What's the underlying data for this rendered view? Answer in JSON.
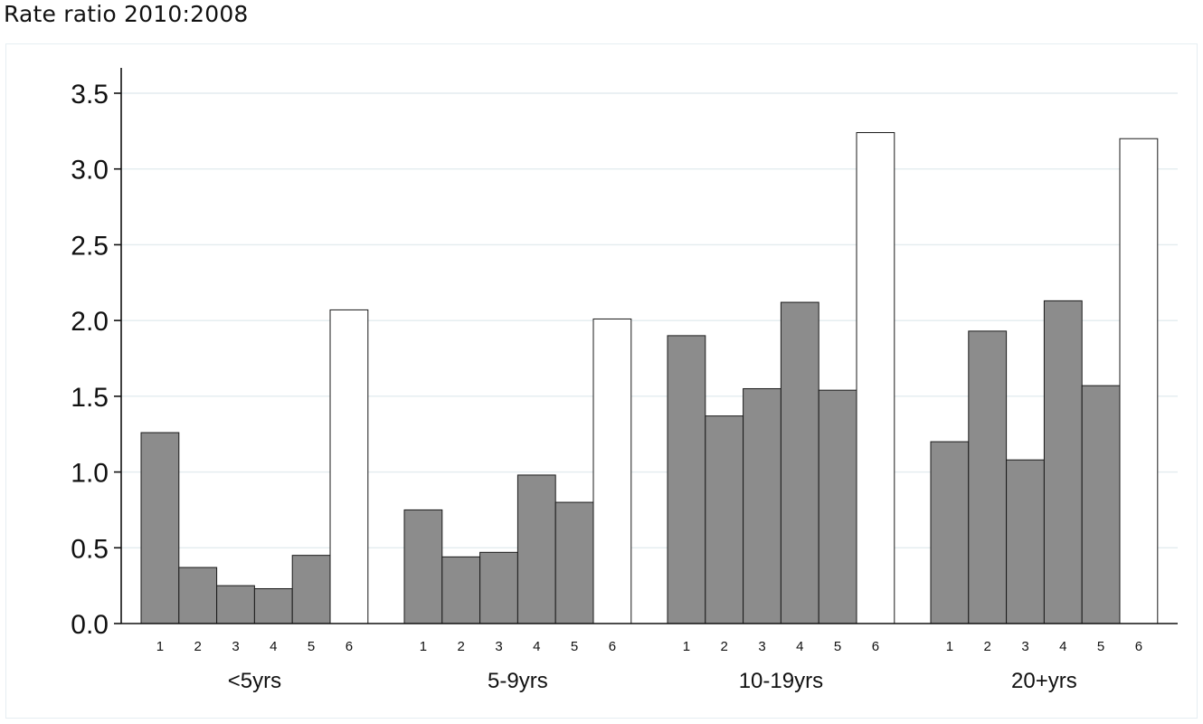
{
  "chart_data": {
    "type": "bar",
    "title": "Rate ratio 2010:2008",
    "xlabel": "",
    "ylabel": "",
    "ylim": [
      0,
      3.5
    ],
    "yticks": [
      "0.0",
      "0.5",
      "1.0",
      "1.5",
      "2.0",
      "2.5",
      "3.0",
      "3.5"
    ],
    "grid": true,
    "legend": "none",
    "colors": {
      "filled_bar": "#8c8c8c",
      "open_bar": "#ffffff",
      "bar_edge": "#1a1a1a",
      "grid": "#e3ecef"
    },
    "groups": [
      {
        "name": "<5yrs",
        "categories": [
          "1",
          "2",
          "3",
          "4",
          "5",
          "6"
        ],
        "values": [
          1.26,
          0.37,
          0.25,
          0.23,
          0.45,
          2.07
        ]
      },
      {
        "name": "5-9yrs",
        "categories": [
          "1",
          "2",
          "3",
          "4",
          "5",
          "6"
        ],
        "values": [
          0.75,
          0.44,
          0.47,
          0.98,
          0.8,
          2.01
        ]
      },
      {
        "name": "10-19yrs",
        "categories": [
          "1",
          "2",
          "3",
          "4",
          "5",
          "6"
        ],
        "values": [
          1.9,
          1.37,
          1.55,
          2.12,
          1.54,
          3.24
        ]
      },
      {
        "name": "20+yrs",
        "categories": [
          "1",
          "2",
          "3",
          "4",
          "5",
          "6"
        ],
        "values": [
          1.2,
          1.93,
          1.08,
          2.13,
          1.57,
          3.2
        ]
      }
    ]
  }
}
